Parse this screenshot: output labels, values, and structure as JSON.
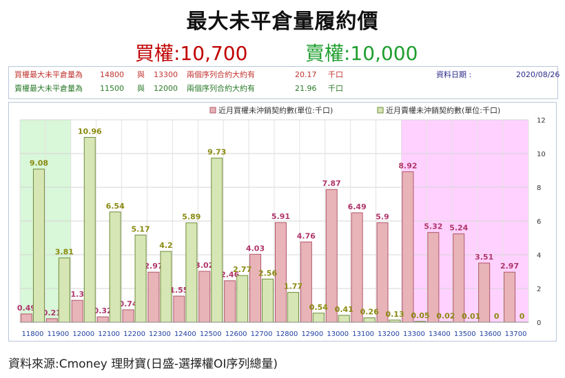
{
  "header": {
    "title": "最大未平倉量履約價",
    "call_label": "買權:10,700",
    "put_label": "賣權:10,000"
  },
  "info": {
    "call_row": {
      "label": "買權最大未平倉量為",
      "strike1": "14800",
      "conj": "與",
      "strike2": "13300",
      "desc": "兩個序列合約大約有",
      "amount": "20.17",
      "unit": "千口"
    },
    "put_row": {
      "label": "賣權最大未平倉量為",
      "strike1": "11500",
      "conj": "與",
      "strike2": "12000",
      "desc": "兩個序列合約大約有",
      "amount": "21.96",
      "unit": "千口"
    },
    "date_label": "資料日期 :",
    "date_value": "2020/08/26"
  },
  "chart_data": {
    "type": "bar",
    "categories": [
      "11800",
      "11900",
      "12000",
      "12100",
      "12200",
      "12300",
      "12400",
      "12500",
      "12600",
      "12700",
      "12800",
      "12900",
      "13000",
      "13100",
      "13200",
      "13300",
      "13400",
      "13500",
      "13600",
      "13700"
    ],
    "series": [
      {
        "name": "近月買權未沖銷契約數(單位:千口)",
        "values": [
          0.49,
          0.21,
          1.3,
          0.32,
          0.74,
          2.97,
          1.55,
          3.02,
          2.46,
          4.03,
          5.91,
          4.76,
          7.87,
          6.49,
          5.9,
          8.92,
          5.32,
          5.24,
          3.51,
          2.97
        ],
        "color": "#e8b4b8",
        "stroke": "#b0566a",
        "label_color": "#b0356a"
      },
      {
        "name": "近月賣權未沖銷契約數(單位:千口)",
        "values": [
          9.08,
          3.81,
          10.96,
          6.54,
          5.17,
          4.2,
          5.89,
          9.73,
          2.77,
          2.56,
          1.77,
          0.54,
          0.41,
          0.26,
          0.13,
          0.05,
          0.02,
          0.01,
          0,
          0
        ],
        "color": "#d6e6b4",
        "stroke": "#6f8a3a",
        "label_color": "#8a8a10"
      }
    ],
    "ylim": [
      0,
      12
    ],
    "yticks": [
      "0",
      "2",
      "4",
      "6",
      "8",
      "10",
      "12"
    ],
    "grid": true,
    "legend": "top-right",
    "highlight_left": {
      "from": "11800",
      "to": "11900",
      "color": "#d9f7d9"
    },
    "highlight_right": {
      "from": "13300",
      "to": "13700",
      "color": "#ffd1ff"
    }
  },
  "footer": {
    "source": "資料來源:Cmoney 理財寶(日盛-選擇權OI序列總量)"
  }
}
